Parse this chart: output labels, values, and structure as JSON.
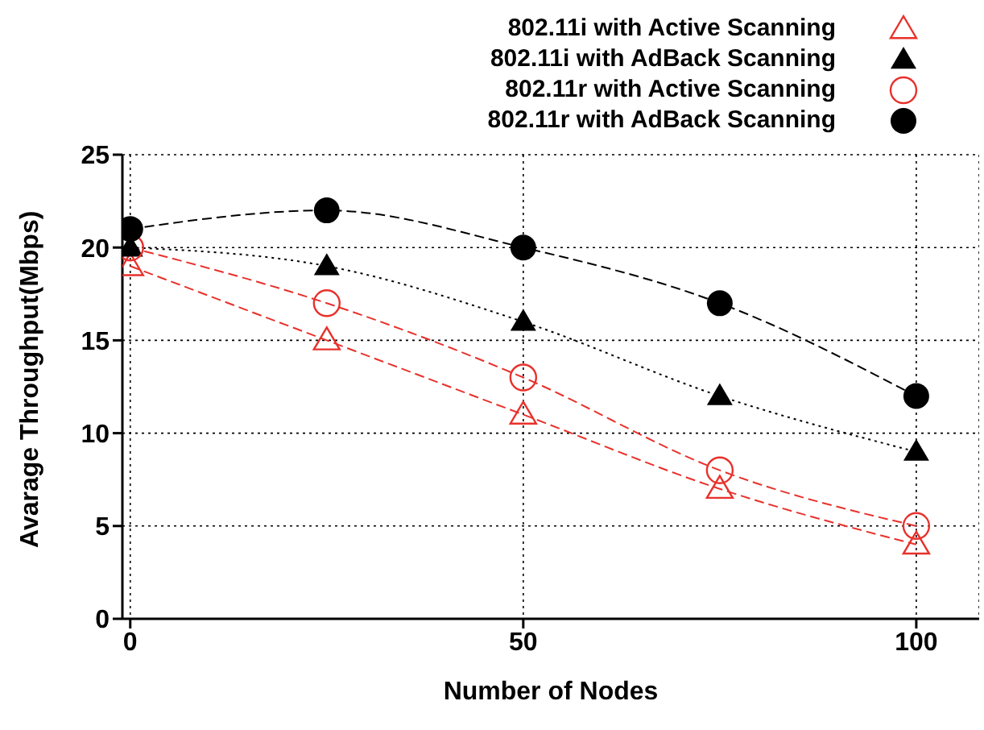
{
  "chart_data": {
    "type": "line",
    "xlabel": "Number of Nodes",
    "ylabel": "Avarage Throughput(Mbps)",
    "x": [
      0,
      25,
      50,
      75,
      100
    ],
    "series": [
      {
        "name": "802.11i with Active Scanning",
        "color": "#e8312b",
        "values": [
          19,
          15,
          11,
          7,
          4
        ],
        "marker": "triangle",
        "line_style": "dashed"
      },
      {
        "name": "802.11i with AdBack Scanning",
        "color": "#000000",
        "values": [
          20,
          19,
          16,
          12,
          9
        ],
        "marker": "triangle",
        "line_style": "dotted"
      },
      {
        "name": "802.11r with Active Scanning",
        "color": "#e8312b",
        "values": [
          20,
          17,
          13,
          8,
          5
        ],
        "marker": "circle",
        "line_style": "dashed"
      },
      {
        "name": "802.11r with AdBack Scanning",
        "color": "#000000",
        "values": [
          21,
          22,
          20,
          17,
          12
        ],
        "marker": "circle",
        "line_style": "dashed"
      }
    ],
    "xlim": [
      -1,
      108
    ],
    "xticks": [
      0,
      50,
      100
    ],
    "ylim": [
      0,
      25
    ],
    "yticks": [
      0,
      5,
      10,
      15,
      20,
      25
    ],
    "grid": true,
    "legend": "top"
  }
}
